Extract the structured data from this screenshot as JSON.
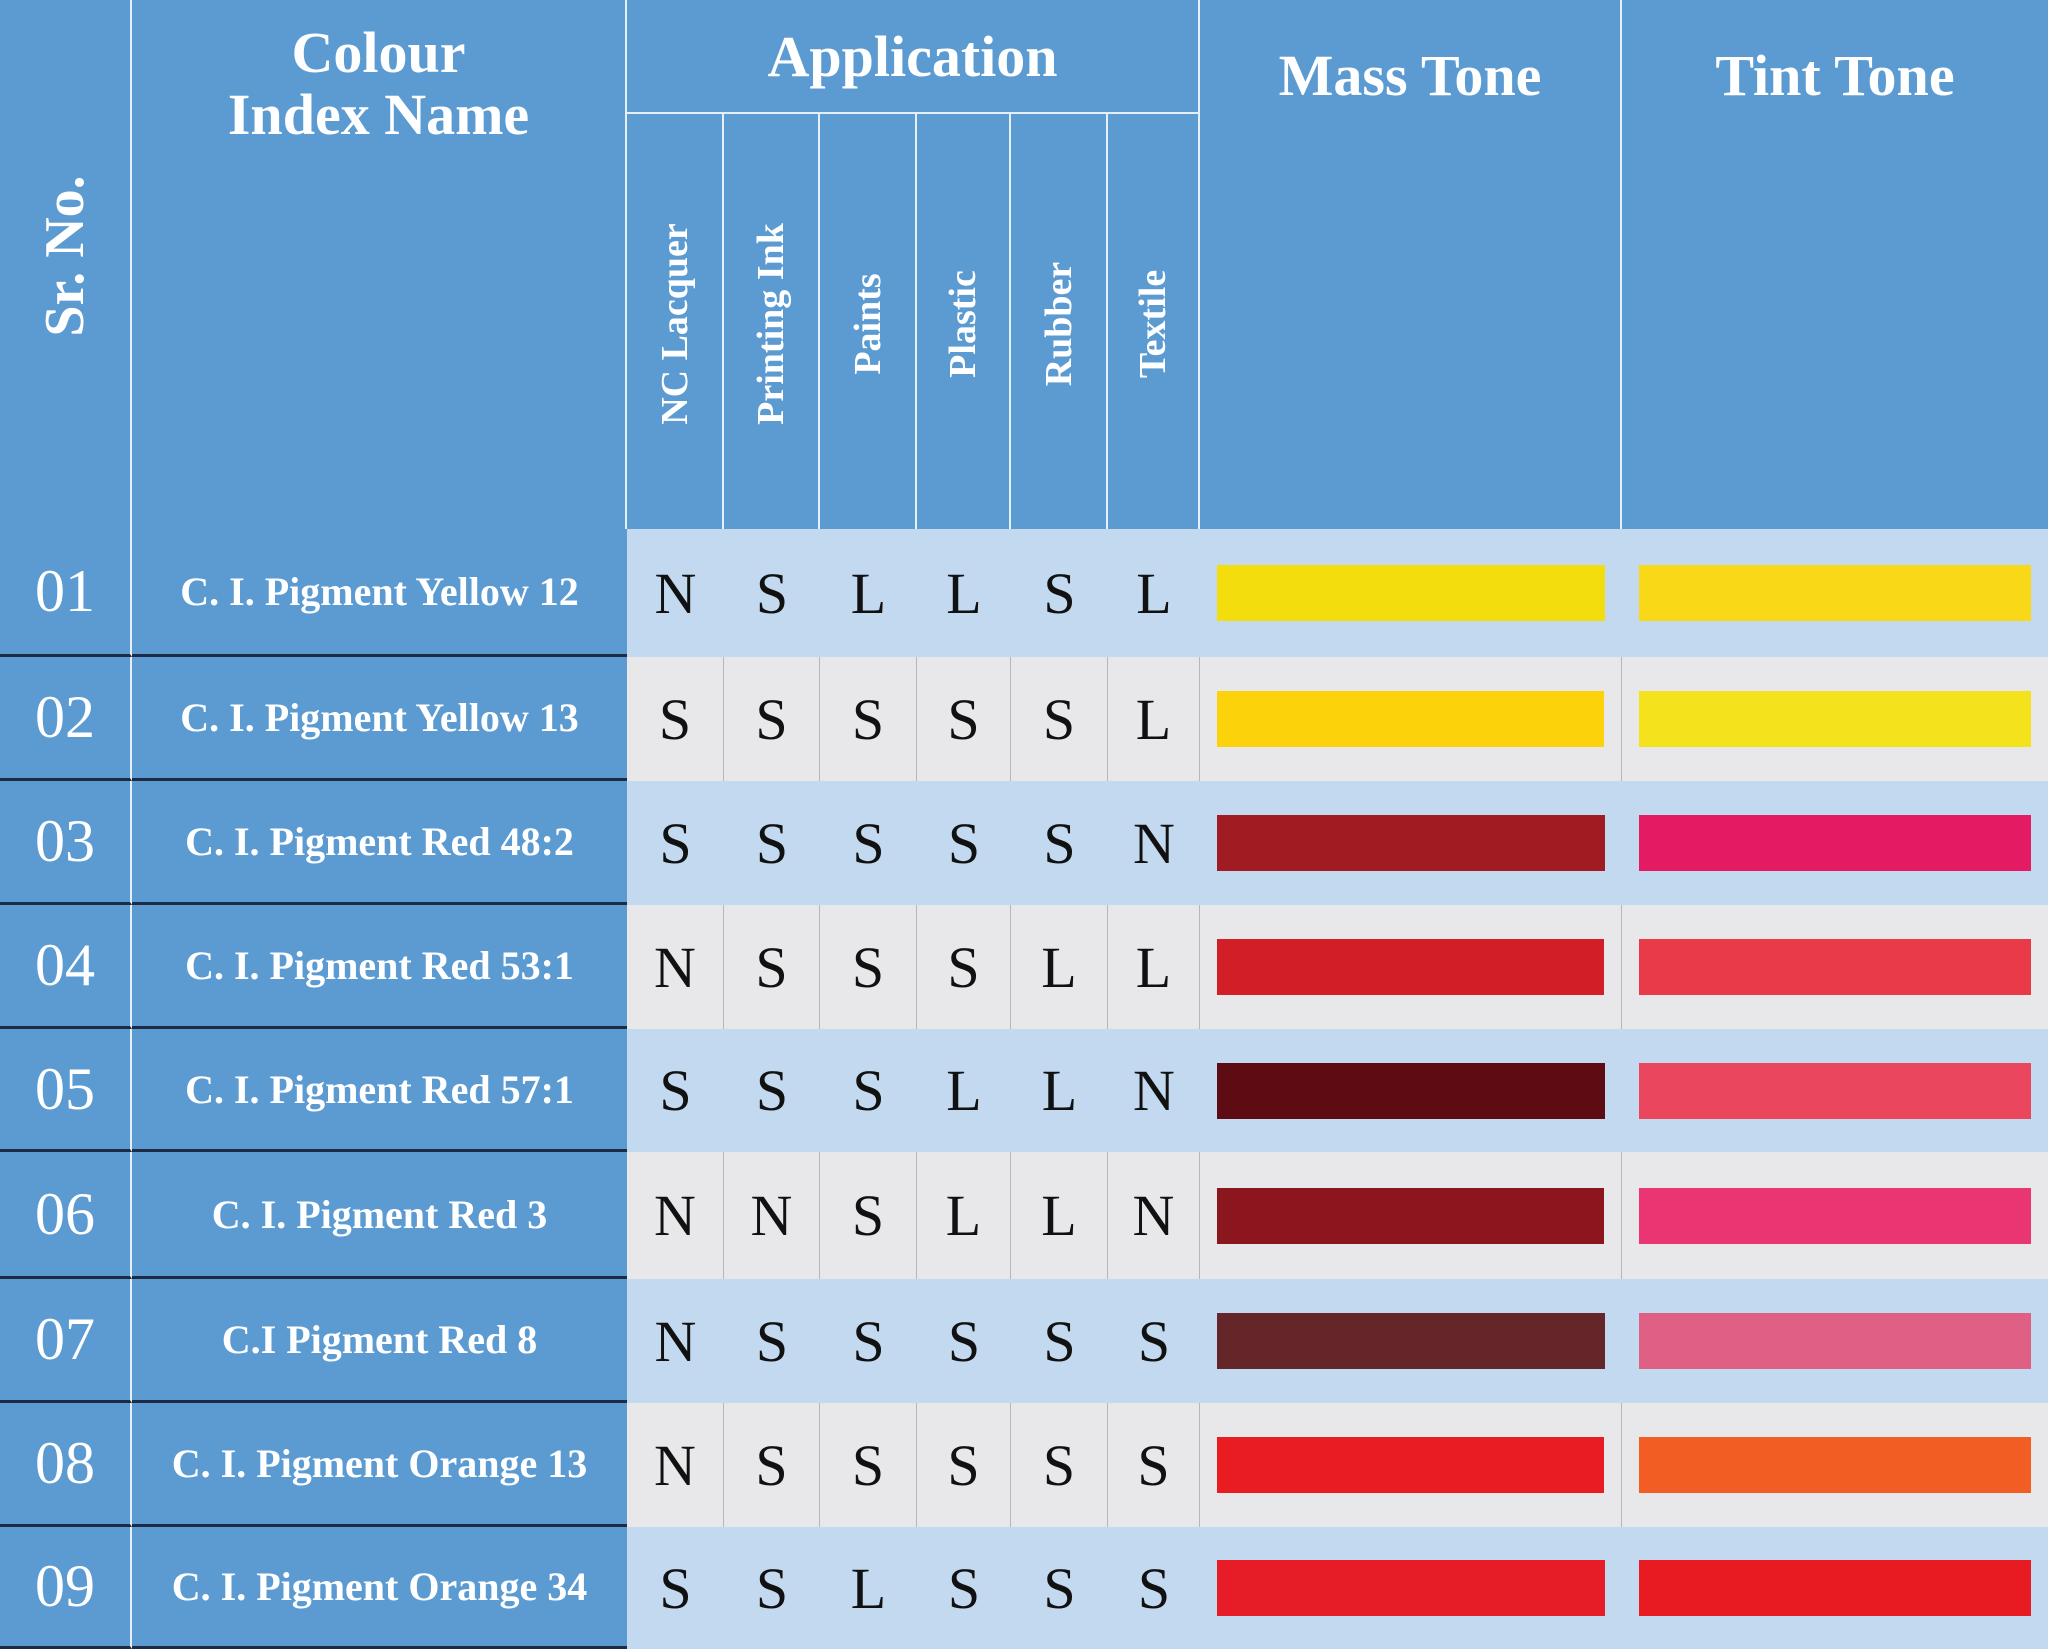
{
  "header": {
    "sr_no": "Sr. No.",
    "colour_index_name_line1": "Colour",
    "colour_index_name_line2": "Index Name",
    "application": "Application",
    "applications": [
      "NC Lacquer",
      "Printing Ink",
      "Paints",
      "Plastic",
      "Rubber",
      "Textile"
    ],
    "mass_tone": "Mass Tone",
    "tint_tone": "Tint Tone"
  },
  "rows": [
    {
      "sr": "01",
      "name": "C. I. Pigment Yellow 12",
      "apps": [
        "N",
        "S",
        "L",
        "L",
        "S",
        "L"
      ],
      "mass": "#f4dd0c",
      "tint": "#f8d817"
    },
    {
      "sr": "02",
      "name": "C. I. Pigment Yellow 13",
      "apps": [
        "S",
        "S",
        "S",
        "S",
        "S",
        "L"
      ],
      "mass": "#fcd30a",
      "tint": "#f3e21c"
    },
    {
      "sr": "03",
      "name": "C. I. Pigment Red 48:2",
      "apps": [
        "S",
        "S",
        "S",
        "S",
        "S",
        "N"
      ],
      "mass": "#a11c22",
      "tint": "#e41a63"
    },
    {
      "sr": "04",
      "name": "C. I. Pigment Red 53:1",
      "apps": [
        "N",
        "S",
        "S",
        "S",
        "L",
        "L"
      ],
      "mass": "#d21f27",
      "tint": "#e93a47"
    },
    {
      "sr": "05",
      "name": "C. I. Pigment Red 57:1",
      "apps": [
        "S",
        "S",
        "S",
        "L",
        "L",
        "N"
      ],
      "mass": "#5e0c14",
      "tint": "#ea475e"
    },
    {
      "sr": "06",
      "name": "C. I. Pigment Red 3",
      "apps": [
        "N",
        "N",
        "S",
        "L",
        "L",
        "N"
      ],
      "mass": "#8b161d",
      "tint": "#ea3573"
    },
    {
      "sr": "07",
      "name": "C.I Pigment Red 8",
      "apps": [
        "N",
        "S",
        "S",
        "S",
        "S",
        "S"
      ],
      "mass": "#652629",
      "tint": "#e05f85"
    },
    {
      "sr": "08",
      "name": "C. I. Pigment Orange 13",
      "apps": [
        "N",
        "S",
        "S",
        "S",
        "S",
        "S"
      ],
      "mass": "#e81c21",
      "tint": "#f15d23"
    },
    {
      "sr": "09",
      "name": "C. I. Pigment Orange 34",
      "apps": [
        "S",
        "S",
        "L",
        "S",
        "S",
        "S"
      ],
      "mass": "#e61c26",
      "tint": "#e81b22"
    }
  ]
}
